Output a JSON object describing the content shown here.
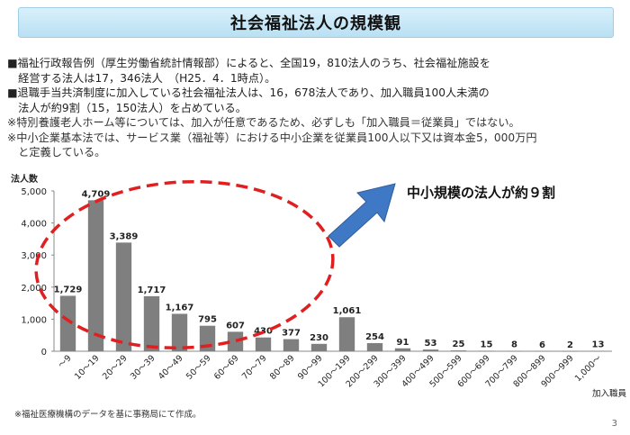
{
  "title": "社会福祉法人の規模観",
  "notes": [
    "■福祉行政報告例（厚生労働省統計情報部）によると、全国19，810法人のうち、社会福祉施設を",
    "　経営する法人は17，346法人　（H25．4．1時点）。",
    "■退職手当共済制度に加入している社会福祉法人は、16，678法人であり、加入職員100人未満の",
    "　法人が約9割（15，150法人）を占めている。",
    "※特別養護老人ホーム等については、加入が任意であるため、必ずしも「加入職員＝従業員」ではない。",
    "※中小企業基本法では、サービス業（福祉等）における中小企業を従業員100人以下又は資本金5，000万円",
    "　と定義している。"
  ],
  "callout": "中小規模の法人が約９割",
  "footnote": "※福祉医療機構のデータを基に事務局にて作成。",
  "page_number": "3",
  "colors": {
    "bar": "#7f7f7f",
    "ellipse": "#e02020",
    "arrow": "#3f78c4",
    "title_bg": "#c8e8f7"
  },
  "chart_data": {
    "type": "bar",
    "ylabel": "法人数",
    "xlabel": "加入職員",
    "ylim": [
      0,
      5000
    ],
    "yticks": [
      "0",
      "1,000",
      "2,000",
      "3,000",
      "4,000",
      "5,000"
    ],
    "categories": [
      "～9",
      "10～19",
      "20～29",
      "30～39",
      "40～49",
      "50～59",
      "60～69",
      "70～79",
      "80～89",
      "90～99",
      "100～199",
      "200～299",
      "300～399",
      "400～499",
      "500～599",
      "600～699",
      "700～799",
      "800～899",
      "900～999",
      "1,000～"
    ],
    "values": [
      1729,
      4709,
      3389,
      1717,
      1167,
      795,
      607,
      430,
      377,
      230,
      1061,
      254,
      91,
      53,
      25,
      15,
      8,
      6,
      2,
      13
    ],
    "value_labels": [
      "1,729",
      "4,709",
      "3,389",
      "1,717",
      "1,167",
      "795",
      "607",
      "430",
      "377",
      "230",
      "1,061",
      "254",
      "91",
      "53",
      "25",
      "15",
      "8",
      "6",
      "2",
      "13"
    ]
  }
}
